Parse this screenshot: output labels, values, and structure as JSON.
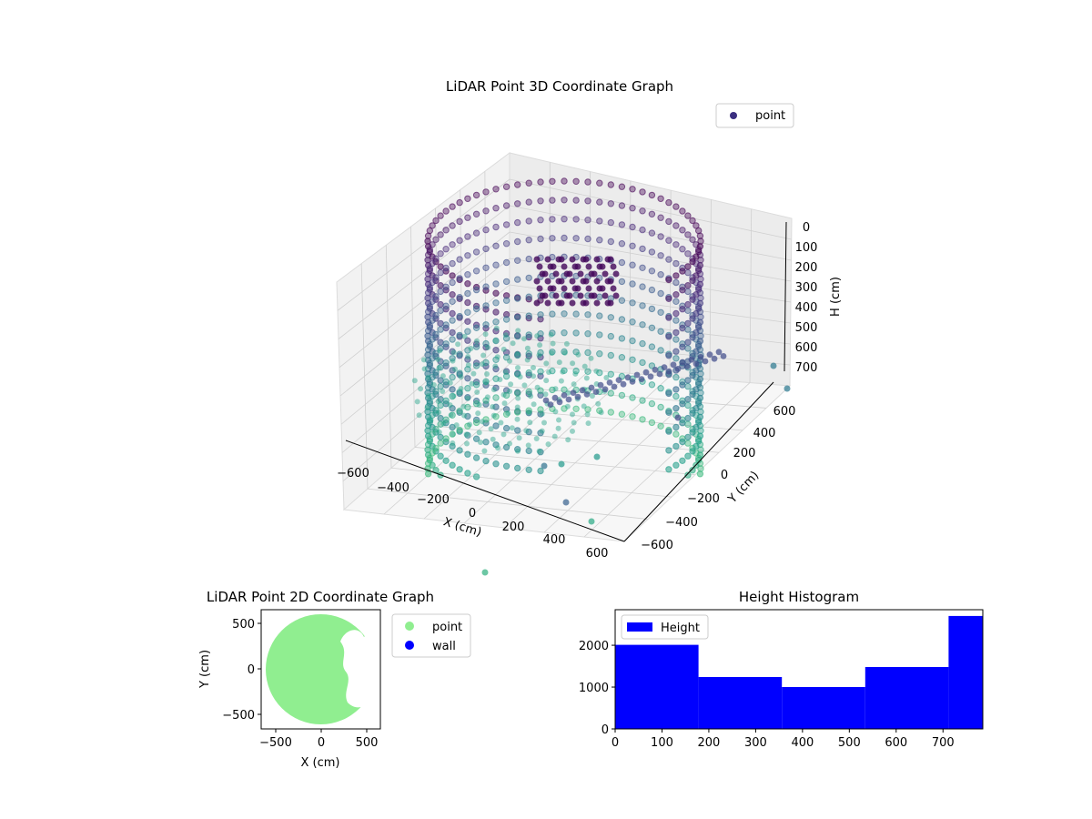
{
  "colors": {
    "point_3d": "#3b2f80",
    "point_2d": "#90ee90",
    "wall": "#0000ff",
    "hist": "#0000ff"
  },
  "chart_data": [
    {
      "id": "scatter3d",
      "type": "scatter",
      "title": "LiDAR Point 3D Coordinate Graph",
      "xlabel": "X (cm)",
      "ylabel": "Y (cm)",
      "zlabel": "H (cm)",
      "x_ticks": [
        "−600",
        "−400",
        "−200",
        "0",
        "200",
        "400",
        "600"
      ],
      "y_ticks": [
        "−600",
        "−400",
        "−200",
        "0",
        "200",
        "400",
        "600"
      ],
      "z_ticks": [
        "0",
        "100",
        "200",
        "300",
        "400",
        "500",
        "600",
        "700"
      ],
      "xlim": [
        -650,
        650
      ],
      "ylim": [
        -650,
        650
      ],
      "zlim": [
        0,
        780
      ],
      "z_inverted": true,
      "legend": {
        "entries": [
          "point"
        ],
        "placement": "top-right"
      },
      "colormap": "viridis",
      "grid": true
    },
    {
      "id": "scatter2d",
      "type": "scatter",
      "title": "LiDAR Point 2D Coordinate Graph",
      "xlabel": "X (cm)",
      "ylabel": "Y (cm)",
      "x_ticks": [
        "−500",
        "0",
        "500"
      ],
      "y_ticks": [
        "500",
        "0",
        "−500"
      ],
      "xlim": [
        -650,
        650
      ],
      "ylim": [
        -650,
        650
      ],
      "legend": {
        "entries": [
          "point",
          "wall"
        ],
        "placement": "outside-right"
      },
      "circle_radius": 600
    },
    {
      "id": "histogram",
      "type": "bar",
      "title": "Height Histogram",
      "x_ticks": [
        "0",
        "100",
        "200",
        "300",
        "400",
        "500",
        "600",
        "700"
      ],
      "y_ticks": [
        "0",
        "1000",
        "2000"
      ],
      "bin_edges": [
        0,
        178,
        356,
        534,
        712,
        785
      ],
      "values": [
        2010,
        1240,
        1000,
        1480,
        2700
      ],
      "xlim": [
        0,
        785
      ],
      "ylim": [
        0,
        2850
      ],
      "legend": {
        "entries": [
          "Height"
        ],
        "placement": "top-left"
      }
    }
  ]
}
